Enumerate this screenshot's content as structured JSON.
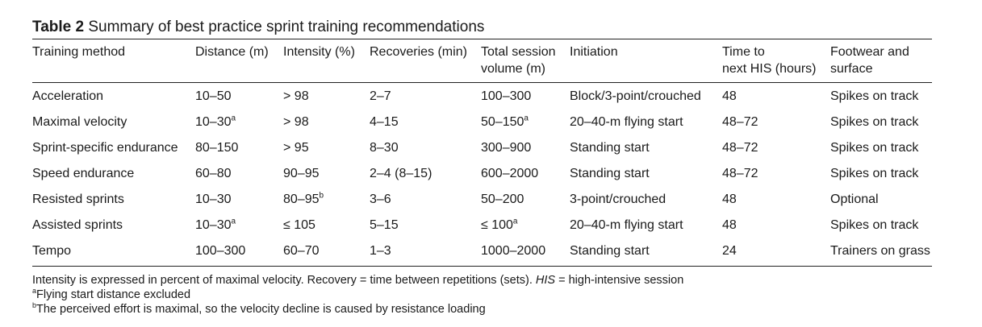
{
  "title": {
    "label": "Table 2",
    "text": "Summary of best practice sprint training recommendations"
  },
  "columns": [
    {
      "line1": "Training method",
      "line2": ""
    },
    {
      "line1": "Distance (m)",
      "line2": ""
    },
    {
      "line1": "Intensity (%)",
      "line2": ""
    },
    {
      "line1": "Recoveries (min)",
      "line2": ""
    },
    {
      "line1": "Total session",
      "line2": "volume (m)"
    },
    {
      "line1": "Initiation",
      "line2": ""
    },
    {
      "line1": "Time to",
      "line2": "next HIS (hours)"
    },
    {
      "line1": "Footwear and",
      "line2": "surface"
    }
  ],
  "rows": [
    {
      "method": "Acceleration",
      "distance": "10–50",
      "distance_sup": "",
      "intensity": "> 98",
      "intensity_sup": "",
      "recoveries": "2–7",
      "volume": "100–300",
      "volume_sup": "",
      "initiation": "Block/3-point/crouched",
      "time": "48",
      "footwear": "Spikes on track"
    },
    {
      "method": "Maximal velocity",
      "distance": "10–30",
      "distance_sup": "a",
      "intensity": "> 98",
      "intensity_sup": "",
      "recoveries": "4–15",
      "volume": "50–150",
      "volume_sup": "a",
      "initiation": "20–40-m flying start",
      "time": "48–72",
      "footwear": "Spikes on track"
    },
    {
      "method": "Sprint-specific endurance",
      "distance": "80–150",
      "distance_sup": "",
      "intensity": "> 95",
      "intensity_sup": "",
      "recoveries": "8–30",
      "volume": "300–900",
      "volume_sup": "",
      "initiation": "Standing start",
      "time": "48–72",
      "footwear": "Spikes on track"
    },
    {
      "method": "Speed endurance",
      "distance": "60–80",
      "distance_sup": "",
      "intensity": "90–95",
      "intensity_sup": "",
      "recoveries": "2–4 (8–15)",
      "volume": "600–2000",
      "volume_sup": "",
      "initiation": "Standing start",
      "time": "48–72",
      "footwear": "Spikes on track"
    },
    {
      "method": "Resisted sprints",
      "distance": "10–30",
      "distance_sup": "",
      "intensity": "80–95",
      "intensity_sup": "b",
      "recoveries": "3–6",
      "volume": "50–200",
      "volume_sup": "",
      "initiation": "3-point/crouched",
      "time": "48",
      "footwear": "Optional"
    },
    {
      "method": "Assisted sprints",
      "distance": "10–30",
      "distance_sup": "a",
      "intensity": "≤ 105",
      "intensity_sup": "",
      "recoveries": "5–15",
      "volume": "≤ 100",
      "volume_sup": "a",
      "initiation": "20–40-m flying start",
      "time": "48",
      "footwear": "Spikes on track"
    },
    {
      "method": "Tempo",
      "distance": "100–300",
      "distance_sup": "",
      "intensity": "60–70",
      "intensity_sup": "",
      "recoveries": "1–3",
      "volume": "1000–2000",
      "volume_sup": "",
      "initiation": "Standing start",
      "time": "24",
      "footwear": "Trainers on grass"
    }
  ],
  "notes": {
    "line1_pre": "Intensity is expressed in percent of maximal velocity. Recovery = time between repetitions (sets). ",
    "line1_abbr": "HIS",
    "line1_post": " = high-intensive session",
    "a_mark": "a",
    "a_text": "Flying start distance excluded",
    "b_mark": "b",
    "b_text": "The perceived effort is maximal, so the velocity decline is caused by resistance loading"
  }
}
